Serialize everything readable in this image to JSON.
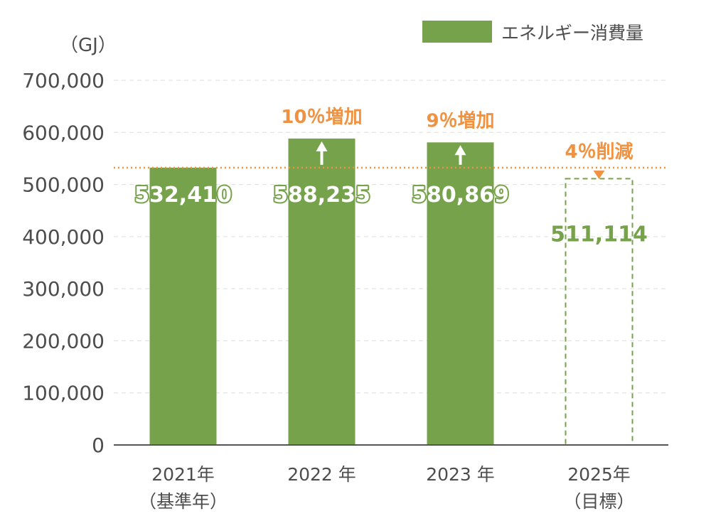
{
  "chart_data": {
    "type": "bar",
    "unit": "（GJ）",
    "legend": {
      "label": "エネルギー消費量",
      "color": "#75a24b",
      "position": "top-right"
    },
    "ylim": [
      0,
      700000
    ],
    "ticks": [
      "0",
      "100,000",
      "200,000",
      "300,000",
      "400,000",
      "500,000",
      "600,000",
      "700,000"
    ],
    "tick_values": [
      0,
      100000,
      200000,
      300000,
      400000,
      500000,
      600000,
      700000
    ],
    "grid": true,
    "categories": [
      {
        "line1": "2021年",
        "line2": "（基準年）"
      },
      {
        "line1": "2022 年",
        "line2": ""
      },
      {
        "line1": "2023 年",
        "line2": ""
      },
      {
        "line1": "2025年",
        "line2": "（目標）"
      }
    ],
    "values": [
      532410,
      588235,
      580869,
      511114
    ],
    "value_labels": [
      "532,410",
      "588,235",
      "580,869",
      "511,114"
    ],
    "target_index": 3,
    "baseline_value": 532410,
    "annotations": [
      {
        "category_index": 1,
        "text": "10％増加",
        "direction": "up"
      },
      {
        "category_index": 2,
        "text": "9％増加",
        "direction": "up"
      },
      {
        "category_index": 3,
        "text": "4％削減",
        "direction": "down"
      }
    ],
    "colors": {
      "bar": "#75a24b",
      "accent": "#ef9241",
      "axis": "#555555",
      "grid": "#dddddd",
      "text": "#4d4d4d"
    }
  }
}
